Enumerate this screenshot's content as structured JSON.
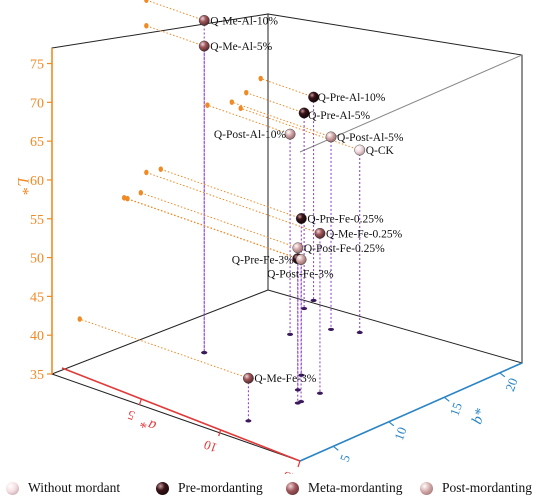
{
  "chart_data": {
    "type": "scatter",
    "title": "",
    "axes": {
      "x": {
        "label": "a*",
        "ticks": [
          5,
          10,
          15
        ],
        "lim": [
          0,
          15
        ],
        "color": "#e03a3a"
      },
      "y": {
        "label": "b*",
        "ticks": [
          5,
          10,
          15,
          20
        ],
        "lim": [
          2,
          22
        ],
        "color": "#2a85c7"
      },
      "z": {
        "label": "L*",
        "ticks": [
          35,
          40,
          45,
          50,
          55,
          60,
          65,
          70,
          75
        ],
        "lim": [
          35,
          77
        ],
        "color": "#f08a24"
      }
    },
    "grid": false,
    "legend_position": "bottom",
    "categories": [
      {
        "name": "Without mordant",
        "color": "#f4dfe2"
      },
      {
        "name": "Pre-mordanting",
        "color": "#3a1418"
      },
      {
        "name": "Meta-mordanting",
        "color": "#a0585c"
      },
      {
        "name": "Post-mordanting",
        "color": "#d4a8a8"
      }
    ],
    "points": [
      {
        "label": "Q-CK",
        "category": "Without mordant",
        "a": 7.2,
        "b": 19.0,
        "L": 58.5
      },
      {
        "label": "Q-Pre-Al-10%",
        "category": "Pre-mordanting",
        "a": 3.2,
        "b": 20.8,
        "L": 61.2
      },
      {
        "label": "Q-Pre-Al-5%",
        "category": "Pre-mordanting",
        "a": 3.5,
        "b": 19.5,
        "L": 60.2
      },
      {
        "label": "Q-Pre-Fe-0.25%",
        "category": "Pre-mordanting",
        "a": 8.5,
        "b": 11.8,
        "L": 55.2
      },
      {
        "label": "Q-Pre-Fe-3%",
        "category": "Pre-mordanting",
        "a": 10.5,
        "b": 8.5,
        "L": 53.6
      },
      {
        "label": "Q-Me-Al-10%",
        "category": "Meta-mordanting",
        "a": 3.5,
        "b": 10.5,
        "L": 77.8
      },
      {
        "label": "Q-Me-Al-5%",
        "category": "Meta-mordanting",
        "a": 3.5,
        "b": 10.5,
        "L": 74.5
      },
      {
        "label": "Q-Me-Fe-0.25%",
        "category": "Meta-mordanting",
        "a": 10.5,
        "b": 10.5,
        "L": 55.6
      },
      {
        "label": "Q-Me-Fe-3%",
        "category": "Meta-mordanting",
        "a": 10.2,
        "b": 4.5,
        "L": 40.5
      },
      {
        "label": "Q-Post-Al-10%",
        "category": "Post-mordanting",
        "a": 5.0,
        "b": 16.0,
        "L": 60.8
      },
      {
        "label": "Q-Post-Al-5%",
        "category": "Post-mordanting",
        "a": 6.0,
        "b": 18.2,
        "L": 59.8
      },
      {
        "label": "Q-Post-Fe-0.25%",
        "category": "Post-mordanting",
        "a": 9.5,
        "b": 10.0,
        "L": 53.3
      },
      {
        "label": "Q-Post-Fe-3%",
        "category": "Post-mordanting",
        "a": 10.5,
        "b": 8.8,
        "L": 53.3
      }
    ]
  }
}
